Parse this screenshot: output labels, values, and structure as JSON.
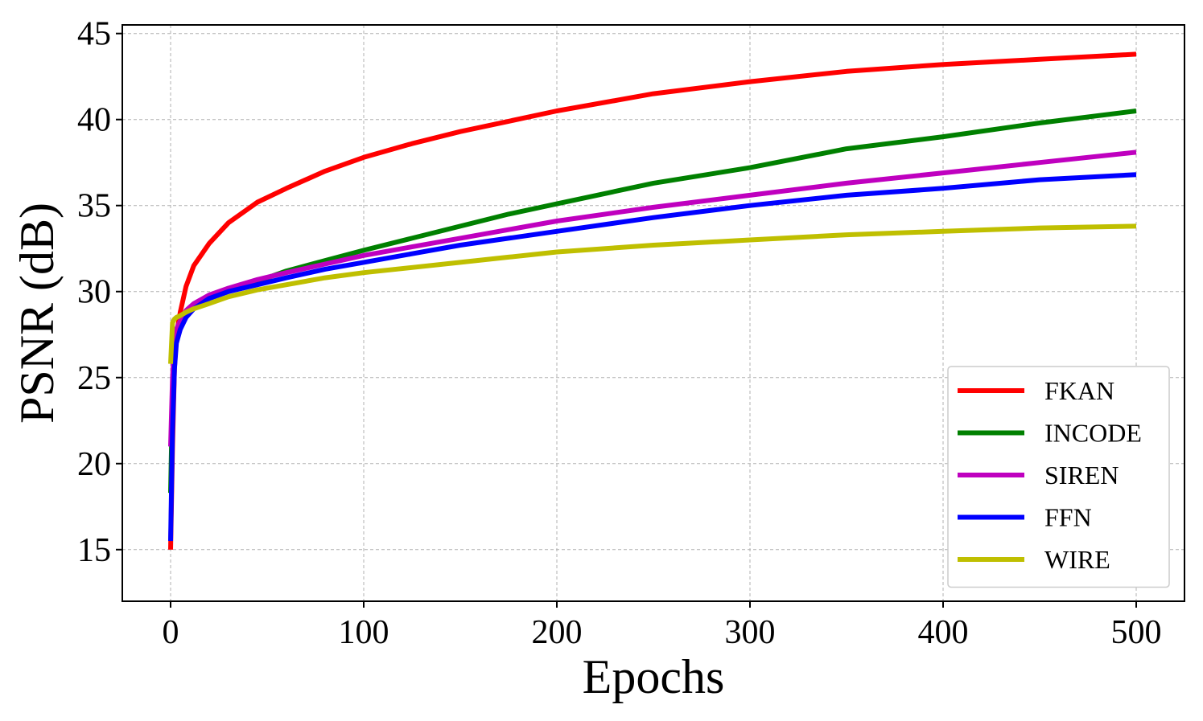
{
  "chart_data": {
    "type": "line",
    "xlabel": "Epochs",
    "ylabel": "PSNR (dB)",
    "xlim": [
      -25,
      525
    ],
    "ylim": [
      12,
      45.5
    ],
    "xticks": [
      0,
      100,
      200,
      300,
      400,
      500
    ],
    "yticks": [
      15,
      20,
      25,
      30,
      35,
      40,
      45
    ],
    "xtick_labels": [
      "0",
      "100",
      "200",
      "300",
      "400",
      "500"
    ],
    "ytick_labels": [
      "15",
      "20",
      "25",
      "30",
      "35",
      "40",
      "45"
    ],
    "grid": true,
    "legend_position": "lower-right",
    "series": [
      {
        "name": "FKAN",
        "color": "#ff0000",
        "x": [
          0,
          1,
          2,
          3,
          5,
          8,
          12,
          20,
          30,
          45,
          60,
          80,
          100,
          125,
          150,
          175,
          200,
          250,
          300,
          350,
          400,
          450,
          500
        ],
        "y": [
          15.0,
          21.0,
          25.5,
          27.5,
          28.8,
          30.3,
          31.5,
          32.8,
          34.0,
          35.2,
          36.0,
          37.0,
          37.8,
          38.6,
          39.3,
          39.9,
          40.5,
          41.5,
          42.2,
          42.8,
          43.2,
          43.5,
          43.8
        ]
      },
      {
        "name": "INCODE",
        "color": "#008000",
        "x": [
          0,
          1,
          2,
          3,
          5,
          8,
          12,
          20,
          30,
          45,
          60,
          80,
          100,
          125,
          150,
          175,
          200,
          250,
          300,
          350,
          400,
          450,
          500
        ],
        "y": [
          18.3,
          24.0,
          26.5,
          27.5,
          28.0,
          28.6,
          29.0,
          29.6,
          30.0,
          30.6,
          31.2,
          31.8,
          32.4,
          33.1,
          33.8,
          34.5,
          35.1,
          36.3,
          37.2,
          38.3,
          39.0,
          39.8,
          40.5
        ]
      },
      {
        "name": "SIREN",
        "color": "#bf00bf",
        "x": [
          0,
          1,
          2,
          3,
          5,
          8,
          12,
          20,
          30,
          45,
          60,
          80,
          100,
          125,
          150,
          175,
          200,
          250,
          300,
          350,
          400,
          450,
          500
        ],
        "y": [
          21.0,
          25.0,
          27.0,
          27.8,
          28.3,
          28.9,
          29.3,
          29.8,
          30.2,
          30.7,
          31.1,
          31.6,
          32.1,
          32.6,
          33.1,
          33.6,
          34.1,
          34.9,
          35.6,
          36.3,
          36.9,
          37.5,
          38.1
        ]
      },
      {
        "name": "FFN",
        "color": "#0000ff",
        "x": [
          0,
          1,
          2,
          3,
          5,
          8,
          12,
          20,
          30,
          45,
          60,
          80,
          100,
          125,
          150,
          175,
          200,
          250,
          300,
          350,
          400,
          450,
          500
        ],
        "y": [
          15.5,
          22.0,
          25.5,
          27.0,
          27.8,
          28.5,
          29.0,
          29.6,
          30.0,
          30.4,
          30.8,
          31.3,
          31.7,
          32.2,
          32.7,
          33.1,
          33.5,
          34.3,
          35.0,
          35.6,
          36.0,
          36.5,
          36.8
        ]
      },
      {
        "name": "WIRE",
        "color": "#bfbf00",
        "x": [
          0,
          1,
          2,
          3,
          5,
          8,
          12,
          20,
          30,
          45,
          60,
          80,
          100,
          125,
          150,
          175,
          200,
          250,
          300,
          350,
          400,
          450,
          500
        ],
        "y": [
          25.8,
          28.2,
          28.4,
          28.5,
          28.6,
          28.8,
          29.0,
          29.3,
          29.7,
          30.1,
          30.4,
          30.8,
          31.1,
          31.4,
          31.7,
          32.0,
          32.3,
          32.7,
          33.0,
          33.3,
          33.5,
          33.7,
          33.8
        ]
      }
    ]
  }
}
